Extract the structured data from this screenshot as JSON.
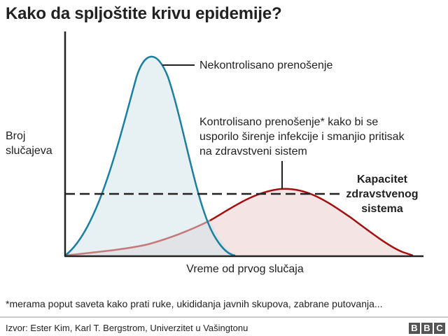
{
  "title": "Kako da spljoštite krivu epidemije?",
  "y_axis_label": "Broj slučajeva",
  "x_axis_label": "Vreme od prvog slučaja",
  "annotations": {
    "uncontrolled": "Nekontrolisano prenošenje",
    "controlled": "Kontrolisano prenošenje* kako bi se usporilo širenje infekcije i smanjio pritisak na zdravstveni sistem",
    "capacity": "Kapacitet zdravstvenog sistema"
  },
  "footnote": "*merama poput saveta kako prati ruke, ukididanja javnih skupova, zabrane putovanja...",
  "source": "Izvor: Ester Kim, Karl T. Bergstrom, Univerzitet u Vašingtonu",
  "logo": [
    "B",
    "B",
    "C"
  ],
  "colors": {
    "uncontrolled_line": "#1a7fa0",
    "uncontrolled_fill": "#e4eef2",
    "controlled_line": "#a50f0f",
    "controlled_fill": "#f4e4e4",
    "capacity_line": "#222222"
  }
}
